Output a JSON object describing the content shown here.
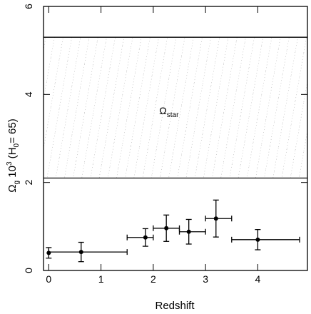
{
  "chart_data": {
    "type": "scatter",
    "xlabel": "Redshift",
    "ylabel": {
      "omega": "Ω",
      "omega_sub": "g",
      "mid": " 10",
      "power": "3",
      "paren_open": " (H",
      "h_sub": "0",
      "paren_close": "= 65)"
    },
    "xlim": [
      -0.1,
      4.95
    ],
    "ylim": [
      0,
      6
    ],
    "xticks": [
      0,
      1,
      2,
      3,
      4
    ],
    "yticks": [
      0,
      2,
      4,
      6
    ],
    "grid": false,
    "band": {
      "label": "Ω",
      "label_sub": "star",
      "label_x": 2.3,
      "label_y": 3.55,
      "y_low": 2.1,
      "y_high": 5.3,
      "fill": "hatched"
    },
    "points": [
      {
        "x": 0.0,
        "y": 0.4,
        "xerr_low": 0.0,
        "xerr_high": 0.0,
        "yerr": 0.12
      },
      {
        "x": 0.62,
        "y": 0.42,
        "xerr_low": 0.62,
        "xerr_high": 0.88,
        "yerr": 0.22
      },
      {
        "x": 1.85,
        "y": 0.75,
        "xerr_low": 0.35,
        "xerr_high": 0.15,
        "yerr": 0.2
      },
      {
        "x": 2.25,
        "y": 0.96,
        "xerr_low": 0.25,
        "xerr_high": 0.25,
        "yerr": 0.3
      },
      {
        "x": 2.68,
        "y": 0.88,
        "xerr_low": 0.18,
        "xerr_high": 0.32,
        "yerr": 0.28
      },
      {
        "x": 3.2,
        "y": 1.18,
        "xerr_low": 0.2,
        "xerr_high": 0.3,
        "yerr": 0.42
      },
      {
        "x": 4.0,
        "y": 0.7,
        "xerr_low": 0.5,
        "xerr_high": 0.8,
        "yerr": 0.23
      }
    ]
  }
}
